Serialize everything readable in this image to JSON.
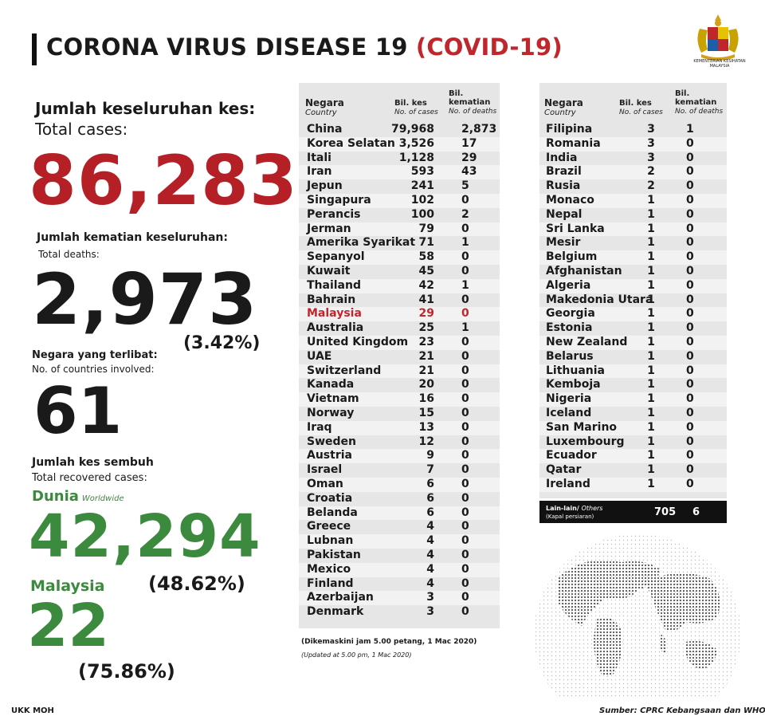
{
  "header": {
    "title_main": "CORONA VIRUS DISEASE 19",
    "title_paren": "(COVID-19)",
    "ministry": "KEMENTERIAN KESIHATAN MALAYSIA"
  },
  "stats": {
    "total_cases_ms": "Jumlah keseluruhan kes:",
    "total_cases_en": "Total cases:",
    "total_cases": "86,283",
    "deaths_ms": "Jumlah kematian keseluruhan:",
    "deaths_en": "Total deaths:",
    "deaths": "2,973",
    "deaths_pct": "(3.42%)",
    "countries_ms": "Negara yang terlibat:",
    "countries_en": "No. of countries involved:",
    "countries": "61",
    "recovered_ms": "Jumlah kes sembuh",
    "recovered_en": "Total recovered cases:",
    "world_label": "Dunia",
    "world_label_en": "Worldwide",
    "recovered_world": "42,294",
    "recovered_world_pct": "(48.62%)",
    "malaysia_label": "Malaysia",
    "recovered_malaysia": "22",
    "recovered_malaysia_pct": "(75.86%)"
  },
  "table_headers": {
    "country_ms": "Negara",
    "country_en": "Country",
    "cases_ms": "Bil. kes",
    "cases_en": "No. of cases",
    "deaths_ms": "Bil. kematian",
    "deaths_en": "No. of deaths"
  },
  "table1": [
    {
      "country": "China",
      "cases": "79,968",
      "deaths": "2,873"
    },
    {
      "country": "Korea Selatan",
      "cases": "3,526",
      "deaths": "17"
    },
    {
      "country": "Itali",
      "cases": "1,128",
      "deaths": "29"
    },
    {
      "country": "Iran",
      "cases": "593",
      "deaths": "43"
    },
    {
      "country": "Jepun",
      "cases": "241",
      "deaths": "5"
    },
    {
      "country": "Singapura",
      "cases": "102",
      "deaths": "0"
    },
    {
      "country": "Perancis",
      "cases": "100",
      "deaths": "2"
    },
    {
      "country": "Jerman",
      "cases": "79",
      "deaths": "0"
    },
    {
      "country": "Amerika Syarikat",
      "cases": "71",
      "deaths": "1"
    },
    {
      "country": "Sepanyol",
      "cases": "58",
      "deaths": "0"
    },
    {
      "country": "Kuwait",
      "cases": "45",
      "deaths": "0"
    },
    {
      "country": "Thailand",
      "cases": "42",
      "deaths": "1"
    },
    {
      "country": "Bahrain",
      "cases": "41",
      "deaths": "0"
    },
    {
      "country": "Malaysia",
      "cases": "29",
      "deaths": "0",
      "highlight": true
    },
    {
      "country": "Australia",
      "cases": "25",
      "deaths": "1"
    },
    {
      "country": "United Kingdom",
      "cases": "23",
      "deaths": "0"
    },
    {
      "country": "UAE",
      "cases": "21",
      "deaths": "0"
    },
    {
      "country": "Switzerland",
      "cases": "21",
      "deaths": "0"
    },
    {
      "country": "Kanada",
      "cases": "20",
      "deaths": "0"
    },
    {
      "country": "Vietnam",
      "cases": "16",
      "deaths": "0"
    },
    {
      "country": "Norway",
      "cases": "15",
      "deaths": "0"
    },
    {
      "country": "Iraq",
      "cases": "13",
      "deaths": "0"
    },
    {
      "country": "Sweden",
      "cases": "12",
      "deaths": "0"
    },
    {
      "country": "Austria",
      "cases": "9",
      "deaths": "0"
    },
    {
      "country": "Israel",
      "cases": "7",
      "deaths": "0"
    },
    {
      "country": "Oman",
      "cases": "6",
      "deaths": "0"
    },
    {
      "country": "Croatia",
      "cases": "6",
      "deaths": "0"
    },
    {
      "country": "Belanda",
      "cases": "6",
      "deaths": "0"
    },
    {
      "country": "Greece",
      "cases": "4",
      "deaths": "0"
    },
    {
      "country": "Lubnan",
      "cases": "4",
      "deaths": "0"
    },
    {
      "country": "Pakistan",
      "cases": "4",
      "deaths": "0"
    },
    {
      "country": "Mexico",
      "cases": "4",
      "deaths": "0"
    },
    {
      "country": "Finland",
      "cases": "4",
      "deaths": "0"
    },
    {
      "country": "Azerbaijan",
      "cases": "3",
      "deaths": "0"
    },
    {
      "country": "Denmark",
      "cases": "3",
      "deaths": "0"
    }
  ],
  "table2": [
    {
      "country": "Filipina",
      "cases": "3",
      "deaths": "1"
    },
    {
      "country": "Romania",
      "cases": "3",
      "deaths": "0"
    },
    {
      "country": "India",
      "cases": "3",
      "deaths": "0"
    },
    {
      "country": "Brazil",
      "cases": "2",
      "deaths": "0"
    },
    {
      "country": "Rusia",
      "cases": "2",
      "deaths": "0"
    },
    {
      "country": "Monaco",
      "cases": "1",
      "deaths": "0"
    },
    {
      "country": "Nepal",
      "cases": "1",
      "deaths": "0"
    },
    {
      "country": "Sri Lanka",
      "cases": "1",
      "deaths": "0"
    },
    {
      "country": "Mesir",
      "cases": "1",
      "deaths": "0"
    },
    {
      "country": "Belgium",
      "cases": "1",
      "deaths": "0"
    },
    {
      "country": "Afghanistan",
      "cases": "1",
      "deaths": "0"
    },
    {
      "country": "Algeria",
      "cases": "1",
      "deaths": "0"
    },
    {
      "country": "Makedonia Utara",
      "cases": "1",
      "deaths": "0"
    },
    {
      "country": "Georgia",
      "cases": "1",
      "deaths": "0"
    },
    {
      "country": "Estonia",
      "cases": "1",
      "deaths": "0"
    },
    {
      "country": "New Zealand",
      "cases": "1",
      "deaths": "0"
    },
    {
      "country": "Belarus",
      "cases": "1",
      "deaths": "0"
    },
    {
      "country": "Lithuania",
      "cases": "1",
      "deaths": "0"
    },
    {
      "country": "Kemboja",
      "cases": "1",
      "deaths": "0"
    },
    {
      "country": "Nigeria",
      "cases": "1",
      "deaths": "0"
    },
    {
      "country": "Iceland",
      "cases": "1",
      "deaths": "0"
    },
    {
      "country": "San Marino",
      "cases": "1",
      "deaths": "0"
    },
    {
      "country": "Luxembourg",
      "cases": "1",
      "deaths": "0"
    },
    {
      "country": "Ecuador",
      "cases": "1",
      "deaths": "0"
    },
    {
      "country": "Qatar",
      "cases": "1",
      "deaths": "0"
    },
    {
      "country": "Ireland",
      "cases": "1",
      "deaths": "0"
    }
  ],
  "others": {
    "label": "Lain-lain/",
    "label_en": "Others",
    "sub": "(Kapal persiaran)",
    "cases": "705",
    "deaths": "6"
  },
  "update": {
    "ms": "(Dikemaskini  jam 5.00 petang, 1 Mac 2020)",
    "en": "(Updated at 5.00 pm, 1 Mac 2020)"
  },
  "footer": {
    "left": "UKK MOH",
    "source": "Sumber: CPRC Kebangsaan dan WHO"
  },
  "colors": {
    "red": "#c0272d",
    "green": "#3b8a3e",
    "table_bg": "#e6e6e6"
  }
}
